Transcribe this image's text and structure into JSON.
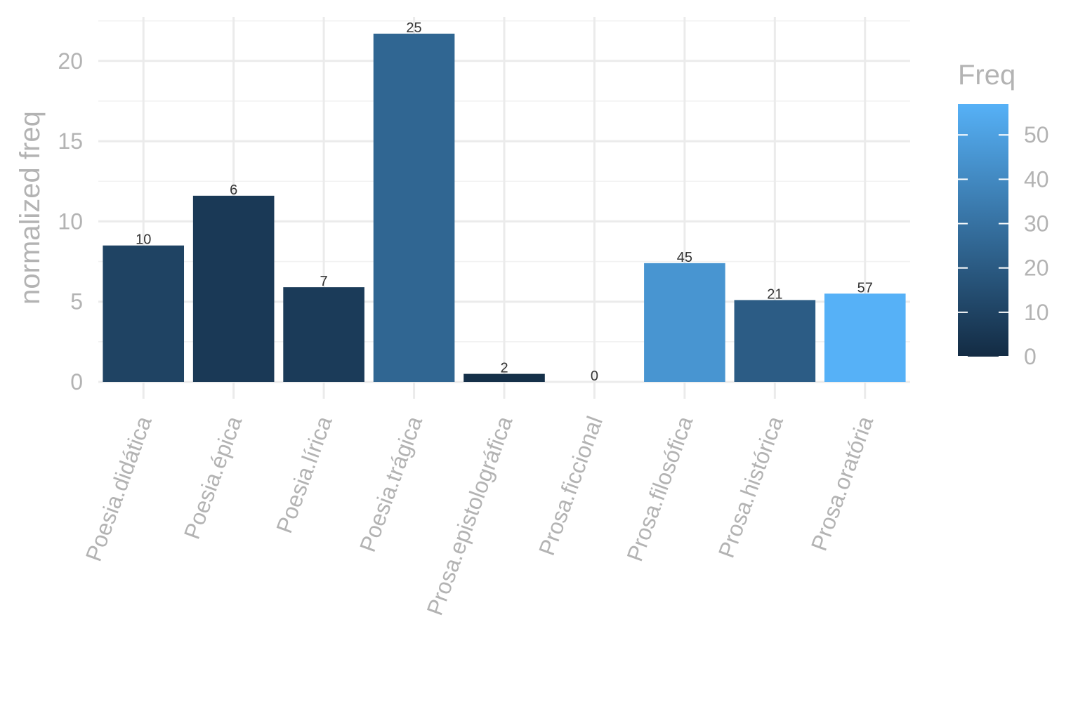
{
  "chart_data": {
    "type": "bar",
    "categories": [
      "Poesia.didática",
      "Poesia.épica",
      "Poesia.lírica",
      "Poesia.trágica",
      "Prosa.epistolográfica",
      "Prosa.ficcional",
      "Prosa.filosófica",
      "Prosa.histórica",
      "Prosa.oratória"
    ],
    "values": [
      8.5,
      11.6,
      5.9,
      21.7,
      0.5,
      0,
      7.4,
      5.1,
      5.5
    ],
    "labels": [
      "10",
      "6",
      "7",
      "25",
      "2",
      "0",
      "45",
      "21",
      "57"
    ],
    "freq": [
      10,
      6,
      7,
      25,
      2,
      0,
      45,
      21,
      57
    ],
    "title": "",
    "xlabel": "",
    "ylabel": "normalized freq",
    "ylim": [
      0,
      22.5
    ],
    "yticks": [
      0,
      5,
      10,
      15,
      20
    ],
    "grid": true,
    "legend": {
      "title": "Freq",
      "placement": "right",
      "ticks": [
        0,
        10,
        20,
        30,
        40,
        50
      ],
      "range": [
        0,
        57
      ],
      "low_color": "#132b43",
      "high_color": "#56b1f7"
    }
  }
}
